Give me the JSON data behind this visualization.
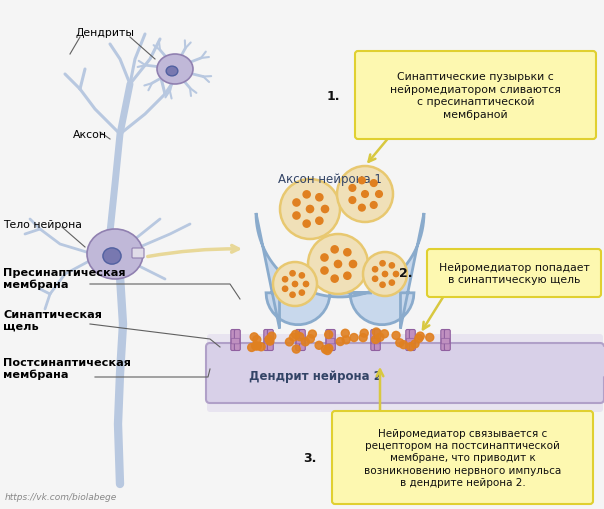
{
  "bg_color": "#f5f5f5",
  "labels": {
    "dendrity": "Дендриты",
    "akson": "Аксон",
    "telo": "Тело нейрона",
    "presin": "Пресинаптическая\nмембрана",
    "sinaptic_gap": "Синаптическая\nщель",
    "postsin": "Постсинаптическая\nмембрана",
    "akson_n1": "Аксон нейрона 1",
    "dendrit_n2": "Дендрит нейрона 2",
    "step1_num": "1.",
    "step1": "Синаптические пузырьки с\nнейромедиатором сливаются\nс пресинаптической\nмембраной",
    "step2_num": "2.",
    "step2": "Нейромедиатор попадает\nв синаптическую щель",
    "step3_num": "3.",
    "step3": "Нейромедиатор связывается с\nрецептором на постсинаптической\nмембране, что приводит к\nвозникновению нервного импульса\nв дендрите нейрона 2.",
    "source": "https://vk.com/biolabege"
  },
  "colors": {
    "neuron_fill": "#b8c8e0",
    "neuron_outline": "#8898b8",
    "neuron_body_fill": "#c0b8d8",
    "neuron_body_outline": "#9080b0",
    "nucleus_fill": "#7878b0",
    "nucleus_outline": "#5060a0",
    "axon_terminal_fill": "#c8d8ec",
    "axon_terminal_outline": "#8aabcc",
    "vesicle_outer": "#f0e0b8",
    "vesicle_ring": "#e8c870",
    "vesicle_dots": "#e08020",
    "dendrite_bg_fill": "#d8d0e8",
    "dendrite_bg_outline": "#b0a0c8",
    "receptor_fill": "#c090c0",
    "receptor_outline": "#9060a0",
    "mediator_dots": "#e08020",
    "callout_fill": "#fdf8b0",
    "callout_outline": "#e0d030",
    "arrow_line": "#d8c840",
    "label_color": "#000000",
    "label_line": "#606060",
    "arrow_fill": "#e8d898"
  },
  "figsize": [
    6.04,
    5.1
  ],
  "dpi": 100
}
